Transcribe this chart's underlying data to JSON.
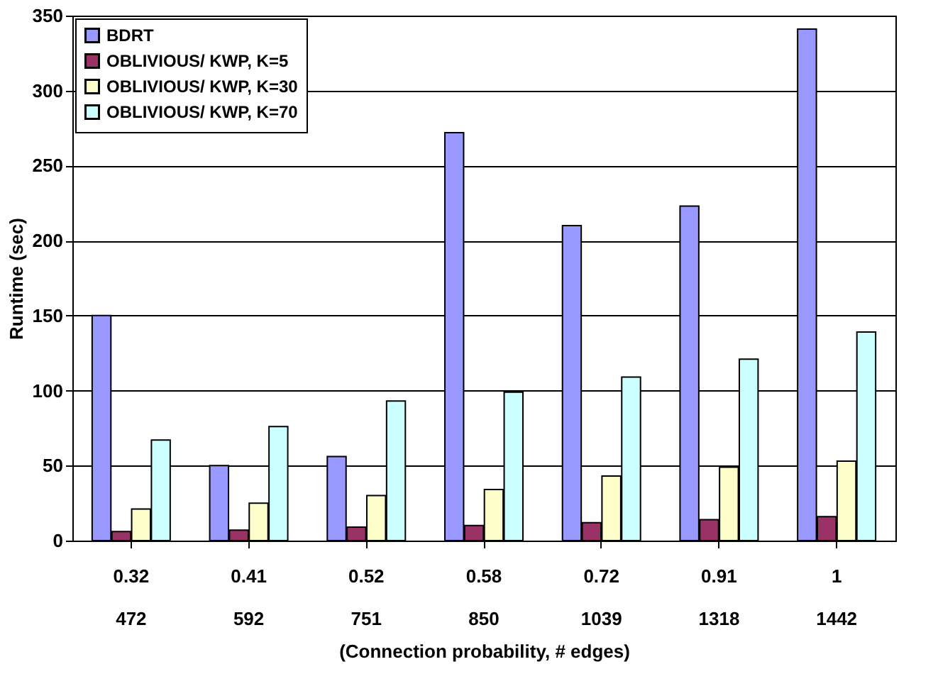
{
  "chart_data": {
    "type": "bar",
    "xlabel": "(Connection probability, # edges)",
    "ylabel": "Runtime (sec)",
    "categories": [
      "0.32\n472",
      "0.41\n592",
      "0.52\n751",
      "0.58\n850",
      "0.72\n1039",
      "0.91\n1318",
      "1\n1442"
    ],
    "series": [
      {
        "name": "BDRT",
        "color": "#9999ff",
        "values": [
          150,
          50,
          56,
          272,
          210,
          223,
          341
        ]
      },
      {
        "name": "OBLIVIOUS/ KWP, K=5",
        "color": "#993366",
        "values": [
          6,
          7,
          9,
          10,
          12,
          14,
          16
        ]
      },
      {
        "name": "OBLIVIOUS/ KWP, K=30",
        "color": "#ffffcc",
        "values": [
          21,
          25,
          30,
          34,
          43,
          49,
          53
        ]
      },
      {
        "name": "OBLIVIOUS/ KWP, K=70",
        "color": "#ccffff",
        "values": [
          67,
          76,
          93,
          99,
          109,
          121,
          139
        ]
      }
    ],
    "ylim": [
      0,
      350
    ],
    "yticks": [
      0,
      50,
      100,
      150,
      200,
      250,
      300,
      350
    ],
    "grid": "y",
    "legend": "top left"
  }
}
